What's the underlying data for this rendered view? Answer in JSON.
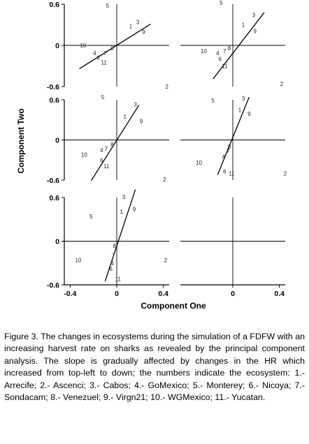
{
  "figure": {
    "y_axis_title": "Component Two",
    "x_axis_title": "Component One"
  },
  "chart_data": [
    {
      "type": "scatter",
      "panel": "top-left",
      "xlim": [
        -0.45,
        0.45
      ],
      "ylim": [
        -0.6,
        0.6
      ],
      "y_ticks": [
        "0.6",
        "0",
        "-0.6"
      ],
      "x_ticks": [],
      "points": [
        {
          "label": "1",
          "x": 0.12,
          "y": 0.28
        },
        {
          "label": "2",
          "x": 0.43,
          "y": -0.6
        },
        {
          "label": "3",
          "x": 0.18,
          "y": 0.34
        },
        {
          "label": "4",
          "x": -0.19,
          "y": -0.11
        },
        {
          "label": "5",
          "x": -0.08,
          "y": 0.58
        },
        {
          "label": "6",
          "x": -0.16,
          "y": -0.18
        },
        {
          "label": "7",
          "x": -0.1,
          "y": -0.11
        },
        {
          "label": "8",
          "x": -0.04,
          "y": -0.04
        },
        {
          "label": "9",
          "x": 0.23,
          "y": 0.2
        },
        {
          "label": "10",
          "x": -0.29,
          "y": 0.0
        },
        {
          "label": "11",
          "x": -0.11,
          "y": -0.25
        }
      ],
      "line": {
        "x": [
          -0.32,
          0.29
        ],
        "y": [
          -0.34,
          0.31
        ]
      }
    },
    {
      "type": "scatter",
      "panel": "top-right",
      "xlim": [
        -0.45,
        0.45
      ],
      "ylim": [
        -0.6,
        0.6
      ],
      "y_ticks": [],
      "x_ticks": [],
      "points": [
        {
          "label": "1",
          "x": 0.09,
          "y": 0.3
        },
        {
          "label": "2",
          "x": 0.42,
          "y": -0.56
        },
        {
          "label": "3",
          "x": 0.18,
          "y": 0.44
        },
        {
          "label": "4",
          "x": -0.13,
          "y": -0.11
        },
        {
          "label": "5",
          "x": -0.1,
          "y": 0.62
        },
        {
          "label": "6",
          "x": -0.11,
          "y": -0.2
        },
        {
          "label": "7",
          "x": -0.07,
          "y": -0.08
        },
        {
          "label": "8",
          "x": -0.03,
          "y": -0.04
        },
        {
          "label": "9",
          "x": 0.19,
          "y": 0.21
        },
        {
          "label": "10",
          "x": -0.25,
          "y": -0.08
        },
        {
          "label": "11",
          "x": -0.07,
          "y": -0.3
        }
      ],
      "line": {
        "x": [
          -0.17,
          0.27
        ],
        "y": [
          -0.49,
          0.48
        ]
      }
    },
    {
      "type": "scatter",
      "panel": "middle-left",
      "xlim": [
        -0.45,
        0.45
      ],
      "ylim": [
        -0.6,
        0.6
      ],
      "y_ticks": [
        "0.6",
        "0",
        "-0.6"
      ],
      "x_ticks": [],
      "points": [
        {
          "label": "1",
          "x": 0.07,
          "y": 0.35
        },
        {
          "label": "2",
          "x": 0.41,
          "y": -0.59
        },
        {
          "label": "3",
          "x": 0.16,
          "y": 0.53
        },
        {
          "label": "4",
          "x": -0.13,
          "y": -0.15
        },
        {
          "label": "5",
          "x": -0.12,
          "y": 0.64
        },
        {
          "label": "6",
          "x": -0.13,
          "y": -0.3
        },
        {
          "label": "7",
          "x": -0.09,
          "y": -0.13
        },
        {
          "label": "8",
          "x": -0.04,
          "y": -0.07
        },
        {
          "label": "9",
          "x": 0.21,
          "y": 0.28
        },
        {
          "label": "10",
          "x": -0.28,
          "y": -0.22
        },
        {
          "label": "11",
          "x": -0.09,
          "y": -0.39
        }
      ],
      "line": {
        "x": [
          -0.22,
          0.19
        ],
        "y": [
          -0.61,
          0.52
        ]
      }
    },
    {
      "type": "scatter",
      "panel": "middle-right",
      "xlim": [
        -0.45,
        0.45
      ],
      "ylim": [
        -0.6,
        0.6
      ],
      "y_ticks": [],
      "x_ticks": [],
      "points": [
        {
          "label": "1",
          "x": 0.06,
          "y": 0.45
        },
        {
          "label": "2",
          "x": 0.45,
          "y": -0.5
        },
        {
          "label": "3",
          "x": 0.09,
          "y": 0.62
        },
        {
          "label": "4",
          "x": -0.08,
          "y": -0.25
        },
        {
          "label": "5",
          "x": -0.17,
          "y": 0.59
        },
        {
          "label": "6",
          "x": -0.07,
          "y": -0.47
        },
        {
          "label": "7",
          "x": -0.04,
          "y": -0.16
        },
        {
          "label": "8",
          "x": -0.03,
          "y": -0.1
        },
        {
          "label": "9",
          "x": 0.14,
          "y": 0.39
        },
        {
          "label": "10",
          "x": -0.29,
          "y": -0.34
        },
        {
          "label": "11",
          "x": -0.01,
          "y": -0.5
        }
      ],
      "line": {
        "x": [
          -0.13,
          0.14
        ],
        "y": [
          -0.52,
          0.64
        ]
      }
    },
    {
      "type": "scatter",
      "panel": "bottom-left",
      "xlim": [
        -0.45,
        0.45
      ],
      "ylim": [
        -0.6,
        0.6
      ],
      "y_ticks": [
        "0.6",
        "0",
        "-0.6"
      ],
      "x_ticks": [
        "-0.4",
        "0",
        "0.4"
      ],
      "points": [
        {
          "label": "1",
          "x": 0.04,
          "y": 0.41
        },
        {
          "label": "2",
          "x": 0.42,
          "y": -0.26
        },
        {
          "label": "3",
          "x": 0.06,
          "y": 0.61
        },
        {
          "label": "4",
          "x": -0.04,
          "y": -0.3
        },
        {
          "label": "5",
          "x": -0.22,
          "y": 0.34
        },
        {
          "label": "6",
          "x": -0.05,
          "y": -0.38
        },
        {
          "label": "7",
          "x": -0.03,
          "y": -0.2
        },
        {
          "label": "8",
          "x": -0.02,
          "y": -0.06
        },
        {
          "label": "9",
          "x": 0.15,
          "y": 0.44
        },
        {
          "label": "10",
          "x": -0.33,
          "y": -0.26
        },
        {
          "label": "11",
          "x": 0.01,
          "y": -0.52
        }
      ],
      "line": {
        "x": [
          -0.1,
          0.16
        ],
        "y": [
          -0.55,
          0.71
        ]
      }
    },
    {
      "type": "scatter",
      "panel": "bottom-right",
      "xlim": [
        -0.45,
        0.45
      ],
      "ylim": [
        -0.6,
        0.6
      ],
      "y_ticks": [],
      "x_ticks": [
        "0",
        "0.4"
      ],
      "points": [],
      "line": null
    }
  ],
  "caption": "Figure 3. The changes in ecosystems during the simulation of a FDFW with an increasing harvest rate on sharks as revealed by the principal component analysis. The slope is gradually affected by changes in the HR which increased from top-left to down; the numbers indicate the ecosystem: 1.- Arrecife; 2.- Ascenci; 3.- Cabos; 4.- GoMexico; 5.- Monterey; 6.- Nicoya; 7.- Sondacam; 8.- Venezuel; 9.- Virgn21; 10.- WGMexico; 11.- Yucatan."
}
